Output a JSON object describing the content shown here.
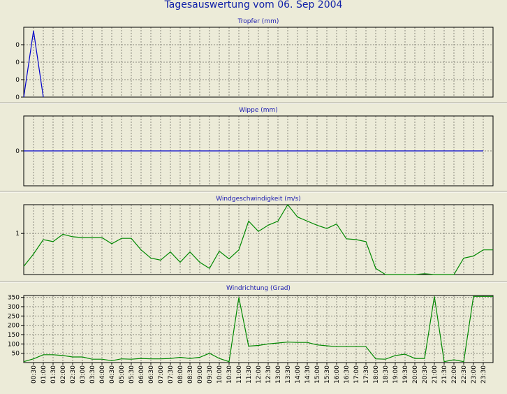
{
  "title": "Tagesauswertung vom 06. Sep 2004",
  "chart_data": [
    {
      "type": "line",
      "title": "Tropfer (mm)",
      "color": "#0000cc",
      "ylim": [
        0,
        0.4
      ],
      "yticks": [
        0,
        0.1,
        0.2,
        0.3
      ],
      "ytick_labels": [
        "0",
        "0",
        "0",
        "0"
      ],
      "grid": true,
      "x": [
        "00:00",
        "00:30",
        "01:00"
      ],
      "values": [
        0.0,
        0.38,
        0.0
      ]
    },
    {
      "type": "line",
      "title": "Wippe (mm)",
      "color": "#0000cc",
      "ylim": [
        -1,
        1
      ],
      "yticks": [
        0
      ],
      "ytick_labels": [
        "0"
      ],
      "grid": true,
      "x": [
        "00:00",
        "23:30"
      ],
      "values": [
        0,
        0
      ]
    },
    {
      "type": "line",
      "title": "Windgeschwindigkeit (m/s)",
      "color": "#008800",
      "ylim": [
        0,
        1.7
      ],
      "yticks": [
        1
      ],
      "ytick_labels": [
        "1"
      ],
      "grid": true,
      "x": [
        "00:00",
        "00:30",
        "01:00",
        "01:30",
        "02:00",
        "02:30",
        "03:00",
        "03:30",
        "04:00",
        "04:30",
        "05:00",
        "05:30",
        "06:00",
        "06:30",
        "07:00",
        "07:30",
        "08:00",
        "08:30",
        "09:00",
        "09:30",
        "10:00",
        "10:30",
        "11:00",
        "11:30",
        "12:00",
        "12:30",
        "13:00",
        "13:30",
        "14:00",
        "14:30",
        "15:00",
        "15:30",
        "16:00",
        "16:30",
        "17:00",
        "17:30",
        "18:00",
        "18:30",
        "19:00",
        "19:30",
        "20:00",
        "20:30",
        "21:00",
        "21:30",
        "22:00",
        "22:30",
        "23:00",
        "23:30",
        "24:00"
      ],
      "values": [
        0.2,
        0.5,
        0.85,
        0.8,
        0.98,
        0.92,
        0.9,
        0.9,
        0.9,
        0.75,
        0.88,
        0.88,
        0.6,
        0.4,
        0.35,
        0.55,
        0.3,
        0.55,
        0.3,
        0.15,
        0.57,
        0.38,
        0.6,
        1.3,
        1.05,
        1.2,
        1.3,
        1.7,
        1.4,
        1.3,
        1.2,
        1.12,
        1.23,
        0.87,
        0.85,
        0.8,
        0.15,
        0.0,
        0.0,
        0.0,
        0.0,
        0.02,
        0.0,
        0.0,
        0.0,
        0.4,
        0.45,
        0.6,
        0.6
      ]
    },
    {
      "type": "line",
      "title": "Windrichtung (Grad)",
      "color": "#008800",
      "ylim": [
        0,
        360
      ],
      "yticks": [
        50,
        100,
        150,
        200,
        250,
        300,
        350
      ],
      "ytick_labels": [
        "50",
        "100",
        "150",
        "200",
        "250",
        "300",
        "350"
      ],
      "grid": true,
      "x": [
        "00:00",
        "00:30",
        "01:00",
        "01:30",
        "02:00",
        "02:30",
        "03:00",
        "03:30",
        "04:00",
        "04:30",
        "05:00",
        "05:30",
        "06:00",
        "06:30",
        "07:00",
        "07:30",
        "08:00",
        "08:30",
        "09:00",
        "09:30",
        "10:00",
        "10:30",
        "11:00",
        "11:30",
        "12:00",
        "12:30",
        "13:00",
        "13:30",
        "14:00",
        "14:30",
        "15:00",
        "15:30",
        "16:00",
        "16:30",
        "17:00",
        "17:30",
        "18:00",
        "18:30",
        "19:00",
        "19:30",
        "20:00",
        "20:30",
        "21:00",
        "21:30",
        "22:00",
        "22:30",
        "23:00",
        "23:30",
        "24:00"
      ],
      "values": [
        5,
        20,
        42,
        42,
        38,
        30,
        30,
        18,
        18,
        10,
        20,
        18,
        22,
        20,
        20,
        22,
        28,
        22,
        28,
        50,
        22,
        5,
        350,
        88,
        92,
        100,
        105,
        110,
        108,
        108,
        95,
        90,
        85,
        85,
        85,
        85,
        20,
        18,
        38,
        45,
        22,
        22,
        355,
        5,
        15,
        5,
        355,
        355,
        355
      ]
    }
  ],
  "x_tick_labels": [
    "00:30",
    "01:00",
    "01:30",
    "02:00",
    "02:30",
    "03:00",
    "03:30",
    "04:00",
    "04:30",
    "05:00",
    "05:30",
    "06:00",
    "06:30",
    "07:00",
    "07:30",
    "08:00",
    "08:30",
    "09:00",
    "09:30",
    "10:00",
    "10:30",
    "11:00",
    "11:30",
    "12:00",
    "12:30",
    "13:00",
    "13:30",
    "14:00",
    "14:30",
    "15:00",
    "15:30",
    "16:00",
    "16:30",
    "17:00",
    "17:30",
    "18:00",
    "18:30",
    "19:00",
    "19:30",
    "20:00",
    "20:30",
    "21:00",
    "21:30",
    "22:00",
    "22:30",
    "23:00",
    "23:30"
  ]
}
